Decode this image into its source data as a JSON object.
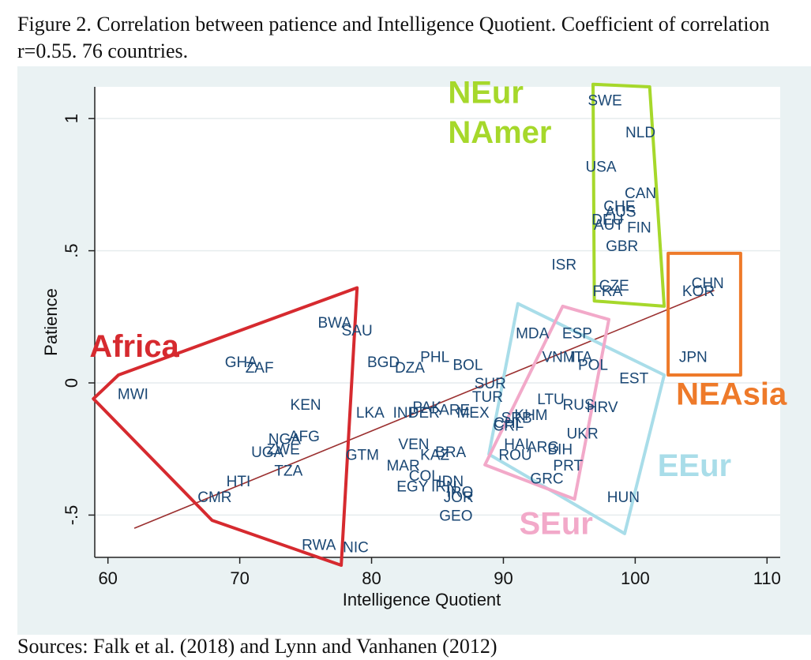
{
  "caption": {
    "line1": "Figure 2. Correlation between patience and Intelligence Quotient. Coefficient of correlation",
    "line2": "r=0.55. 76 countries."
  },
  "footer": "Sources: Falk et al. (2018) and Lynn and Vanhanen (2012)",
  "colors": {
    "panel": "#eaf2f3",
    "point_text": "#1a4774",
    "fit_line": "#9b3030",
    "africa": "#d62a2f",
    "neur": "#a6d82b",
    "neasia": "#ee7a2a",
    "eeur": "#a9dde9",
    "seur": "#f2a9c9"
  },
  "chart_data": {
    "type": "scatter",
    "xlabel": "Intelligence Quotient",
    "ylabel": "Patience",
    "xlim": [
      59,
      111
    ],
    "ylim": [
      -0.66,
      1.12
    ],
    "xticks": [
      60,
      70,
      80,
      90,
      100,
      110
    ],
    "yticks": [
      -0.5,
      0,
      0.5,
      1
    ],
    "ytick_labels": [
      "-.5",
      "0",
      ".5",
      "1"
    ],
    "grid": "horizontal",
    "fit_line": {
      "x": [
        62,
        106
      ],
      "y": [
        -0.55,
        0.35
      ]
    },
    "points": [
      {
        "label": "SWE",
        "x": 97.7,
        "y": 1.07
      },
      {
        "label": "NLD",
        "x": 100.4,
        "y": 0.95
      },
      {
        "label": "USA",
        "x": 97.4,
        "y": 0.82
      },
      {
        "label": "CAN",
        "x": 100.4,
        "y": 0.72
      },
      {
        "label": "CHE",
        "x": 98.8,
        "y": 0.67
      },
      {
        "label": "AUS",
        "x": 98.9,
        "y": 0.65
      },
      {
        "label": "DEU",
        "x": 97.9,
        "y": 0.62
      },
      {
        "label": "AUT",
        "x": 98.0,
        "y": 0.6
      },
      {
        "label": "FIN",
        "x": 100.3,
        "y": 0.59
      },
      {
        "label": "GBR",
        "x": 99.0,
        "y": 0.52
      },
      {
        "label": "ISR",
        "x": 94.6,
        "y": 0.45
      },
      {
        "label": "CZE",
        "x": 98.4,
        "y": 0.37
      },
      {
        "label": "FRA",
        "x": 97.9,
        "y": 0.35
      },
      {
        "label": "CHN",
        "x": 105.5,
        "y": 0.38
      },
      {
        "label": "KOR",
        "x": 104.8,
        "y": 0.35
      },
      {
        "label": "JPN",
        "x": 104.4,
        "y": 0.1
      },
      {
        "label": "MDA",
        "x": 92.2,
        "y": 0.19
      },
      {
        "label": "ESP",
        "x": 95.6,
        "y": 0.19
      },
      {
        "label": "VNM",
        "x": 94.2,
        "y": 0.1
      },
      {
        "label": "ITA",
        "x": 95.9,
        "y": 0.1
      },
      {
        "label": "POL",
        "x": 96.8,
        "y": 0.07
      },
      {
        "label": "EST",
        "x": 99.9,
        "y": 0.02
      },
      {
        "label": "LTU",
        "x": 93.6,
        "y": -0.06
      },
      {
        "label": "RUS",
        "x": 95.7,
        "y": -0.08
      },
      {
        "label": "HRV",
        "x": 97.5,
        "y": -0.09
      },
      {
        "label": "UKR",
        "x": 96.0,
        "y": -0.19
      },
      {
        "label": "HUN",
        "x": 99.1,
        "y": -0.43
      },
      {
        "label": "PRT",
        "x": 94.9,
        "y": -0.31
      },
      {
        "label": "GRC",
        "x": 93.3,
        "y": -0.36
      },
      {
        "label": "ARG",
        "x": 93.0,
        "y": -0.24
      },
      {
        "label": "BIH",
        "x": 94.3,
        "y": -0.25
      },
      {
        "label": "HAI",
        "x": 91.0,
        "y": -0.23
      },
      {
        "label": "ROU",
        "x": 90.9,
        "y": -0.27
      },
      {
        "label": "SRB",
        "x": 91.0,
        "y": -0.13
      },
      {
        "label": "KHM",
        "x": 92.1,
        "y": -0.12
      },
      {
        "label": "CHL",
        "x": 90.4,
        "y": -0.15
      },
      {
        "label": "CRI",
        "x": 90.2,
        "y": -0.16
      },
      {
        "label": "SUR",
        "x": 89.0,
        "y": -0.0
      },
      {
        "label": "TUR",
        "x": 88.8,
        "y": -0.05
      },
      {
        "label": "MEX",
        "x": 87.7,
        "y": -0.11
      },
      {
        "label": "ARE",
        "x": 86.3,
        "y": -0.1
      },
      {
        "label": "PAK",
        "x": 84.2,
        "y": -0.09
      },
      {
        "label": "IND",
        "x": 82.6,
        "y": -0.11
      },
      {
        "label": "PER",
        "x": 84.0,
        "y": -0.11
      },
      {
        "label": "PHL",
        "x": 84.8,
        "y": 0.1
      },
      {
        "label": "BOL",
        "x": 87.3,
        "y": 0.07
      },
      {
        "label": "BGD",
        "x": 80.9,
        "y": 0.08
      },
      {
        "label": "DZA",
        "x": 82.9,
        "y": 0.06
      },
      {
        "label": "LKA",
        "x": 79.9,
        "y": -0.11
      },
      {
        "label": "VEN",
        "x": 83.2,
        "y": -0.23
      },
      {
        "label": "KAZ",
        "x": 84.8,
        "y": -0.27
      },
      {
        "label": "BRA",
        "x": 86.0,
        "y": -0.26
      },
      {
        "label": "MAR",
        "x": 82.4,
        "y": -0.31
      },
      {
        "label": "COL",
        "x": 84.0,
        "y": -0.35
      },
      {
        "label": "IDN",
        "x": 86.0,
        "y": -0.37
      },
      {
        "label": "EGY",
        "x": 83.1,
        "y": -0.39
      },
      {
        "label": "IRN",
        "x": 85.5,
        "y": -0.39
      },
      {
        "label": "IRQ",
        "x": 86.7,
        "y": -0.41
      },
      {
        "label": "JOR",
        "x": 86.6,
        "y": -0.43
      },
      {
        "label": "GEO",
        "x": 86.4,
        "y": -0.5
      },
      {
        "label": "BWA",
        "x": 77.2,
        "y": 0.23
      },
      {
        "label": "SAU",
        "x": 78.9,
        "y": 0.2
      },
      {
        "label": "GHA",
        "x": 70.1,
        "y": 0.08
      },
      {
        "label": "ZAF",
        "x": 71.5,
        "y": 0.06
      },
      {
        "label": "MWI",
        "x": 61.9,
        "y": -0.04
      },
      {
        "label": "KEN",
        "x": 75.0,
        "y": -0.08
      },
      {
        "label": "NGA",
        "x": 73.4,
        "y": -0.21
      },
      {
        "label": "AFG",
        "x": 74.9,
        "y": -0.2
      },
      {
        "label": "ZWE",
        "x": 73.3,
        "y": -0.25
      },
      {
        "label": "UGA",
        "x": 72.1,
        "y": -0.26
      },
      {
        "label": "GTM",
        "x": 79.3,
        "y": -0.27
      },
      {
        "label": "TZA",
        "x": 73.7,
        "y": -0.33
      },
      {
        "label": "HTI",
        "x": 69.9,
        "y": -0.37
      },
      {
        "label": "CMR",
        "x": 68.1,
        "y": -0.43
      },
      {
        "label": "RWA",
        "x": 76.0,
        "y": -0.61
      },
      {
        "label": "NIC",
        "x": 78.8,
        "y": -0.62
      }
    ],
    "regions": [
      {
        "name": "NEur",
        "name2": "NAmer",
        "color_key": "neur",
        "poly": [
          [
            96.8,
            1.13
          ],
          [
            101.1,
            1.12
          ],
          [
            102.2,
            0.29
          ],
          [
            96.9,
            0.31
          ]
        ],
        "label_at": [
          85.8,
          1.1
        ],
        "label2_at": [
          85.8,
          0.95
        ]
      },
      {
        "name": "NEAsia",
        "color_key": "neasia",
        "poly": [
          [
            102.5,
            0.49
          ],
          [
            108.0,
            0.49
          ],
          [
            108.0,
            0.03
          ],
          [
            102.5,
            0.03
          ]
        ],
        "label_at": [
          103.1,
          -0.04
        ]
      },
      {
        "name": "Africa",
        "color_key": "africa",
        "poly": [
          [
            60.8,
            0.03
          ],
          [
            78.9,
            0.36
          ],
          [
            77.7,
            -0.69
          ],
          [
            67.9,
            -0.52
          ],
          [
            58.9,
            -0.06
          ],
          [
            60.8,
            0.03
          ]
        ],
        "label_at": [
          58.6,
          0.14
        ]
      },
      {
        "name": "EEur",
        "color_key": "eeur",
        "poly": [
          [
            91.1,
            0.3
          ],
          [
            102.2,
            0.03
          ],
          [
            99.2,
            -0.57
          ],
          [
            88.9,
            -0.27
          ]
        ],
        "label_at": [
          101.7,
          -0.31
        ]
      },
      {
        "name": "SEur",
        "color_key": "seur",
        "poly": [
          [
            94.5,
            0.29
          ],
          [
            98.0,
            0.24
          ],
          [
            95.4,
            -0.44
          ],
          [
            88.6,
            -0.31
          ]
        ],
        "label_at": [
          91.2,
          -0.53
        ]
      }
    ]
  }
}
